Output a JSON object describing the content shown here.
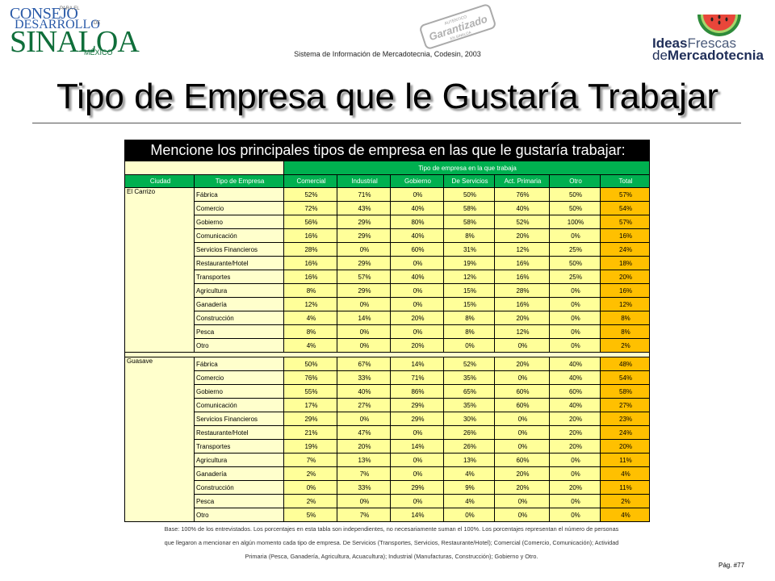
{
  "header": {
    "logo_left": {
      "line1": "CONSEJO",
      "line2": "DESARROLLO",
      "line3": "SINALOA",
      "line4": "MÉXICO",
      "small1": "PARA EL",
      "small2": "DE"
    },
    "stamp": {
      "top": "AUTENTICO",
      "main": "Garantizado",
      "bottom": "EN SINALOA"
    },
    "subtitle": "Sistema de Información de Mercadotecnia, Codesin, 2003",
    "logo_right": {
      "ideas": "Ideas",
      "frescas": "Frescas",
      "de": "de",
      "mercadotecnia": "Mercadotecnia"
    }
  },
  "title": "Tipo de Empresa que le Gustaría Trabajar",
  "table": {
    "question": "Mencione los principales tipos de empresa en las que le gustaría trabajar:",
    "group_header": "Tipo de empresa en la que trabaja",
    "col_headers": [
      "Ciudad",
      "Tipo de Empresa",
      "Comercial",
      "Industrial",
      "Gobierno",
      "De Servicios",
      "Act. Primaria",
      "Otro",
      "Total"
    ],
    "cities": [
      {
        "name": "El Carrizo",
        "rows": [
          {
            "tipo": "Fábrica",
            "vals": [
              "52%",
              "71%",
              "0%",
              "50%",
              "76%",
              "50%"
            ],
            "total": "57%"
          },
          {
            "tipo": "Comercio",
            "vals": [
              "72%",
              "43%",
              "40%",
              "58%",
              "40%",
              "50%"
            ],
            "total": "54%"
          },
          {
            "tipo": "Gobierno",
            "vals": [
              "56%",
              "29%",
              "80%",
              "58%",
              "52%",
              "100%"
            ],
            "total": "57%"
          },
          {
            "tipo": "Comunicación",
            "vals": [
              "16%",
              "29%",
              "40%",
              "8%",
              "20%",
              "0%"
            ],
            "total": "16%"
          },
          {
            "tipo": "Servicios Financieros",
            "vals": [
              "28%",
              "0%",
              "60%",
              "31%",
              "12%",
              "25%"
            ],
            "total": "24%"
          },
          {
            "tipo": "Restaurante/Hotel",
            "vals": [
              "16%",
              "29%",
              "0%",
              "19%",
              "16%",
              "50%"
            ],
            "total": "18%"
          },
          {
            "tipo": "Transportes",
            "vals": [
              "16%",
              "57%",
              "40%",
              "12%",
              "16%",
              "25%"
            ],
            "total": "20%"
          },
          {
            "tipo": "Agricultura",
            "vals": [
              "8%",
              "29%",
              "0%",
              "15%",
              "28%",
              "0%"
            ],
            "total": "16%"
          },
          {
            "tipo": "Ganadería",
            "vals": [
              "12%",
              "0%",
              "0%",
              "15%",
              "16%",
              "0%"
            ],
            "total": "12%"
          },
          {
            "tipo": "Construcción",
            "vals": [
              "4%",
              "14%",
              "20%",
              "8%",
              "20%",
              "0%"
            ],
            "total": "8%"
          },
          {
            "tipo": "Pesca",
            "vals": [
              "8%",
              "0%",
              "0%",
              "8%",
              "12%",
              "0%"
            ],
            "total": "8%"
          },
          {
            "tipo": "Otro",
            "vals": [
              "4%",
              "0%",
              "20%",
              "0%",
              "0%",
              "0%"
            ],
            "total": "2%"
          }
        ]
      },
      {
        "name": "Guasave",
        "rows": [
          {
            "tipo": "Fábrica",
            "vals": [
              "50%",
              "67%",
              "14%",
              "52%",
              "20%",
              "40%"
            ],
            "total": "48%"
          },
          {
            "tipo": "Comercio",
            "vals": [
              "76%",
              "33%",
              "71%",
              "35%",
              "0%",
              "40%"
            ],
            "total": "54%"
          },
          {
            "tipo": "Gobierno",
            "vals": [
              "55%",
              "40%",
              "86%",
              "65%",
              "60%",
              "60%"
            ],
            "total": "58%"
          },
          {
            "tipo": "Comunicación",
            "vals": [
              "17%",
              "27%",
              "29%",
              "35%",
              "60%",
              "40%"
            ],
            "total": "27%"
          },
          {
            "tipo": "Servicios Financieros",
            "vals": [
              "29%",
              "0%",
              "29%",
              "30%",
              "0%",
              "20%"
            ],
            "total": "23%"
          },
          {
            "tipo": "Restaurante/Hotel",
            "vals": [
              "21%",
              "47%",
              "0%",
              "26%",
              "0%",
              "20%"
            ],
            "total": "24%"
          },
          {
            "tipo": "Transportes",
            "vals": [
              "19%",
              "20%",
              "14%",
              "26%",
              "0%",
              "20%"
            ],
            "total": "20%"
          },
          {
            "tipo": "Agricultura",
            "vals": [
              "7%",
              "13%",
              "0%",
              "13%",
              "60%",
              "0%"
            ],
            "total": "11%"
          },
          {
            "tipo": "Ganadería",
            "vals": [
              "2%",
              "7%",
              "0%",
              "4%",
              "20%",
              "0%"
            ],
            "total": "4%"
          },
          {
            "tipo": "Construcción",
            "vals": [
              "0%",
              "33%",
              "29%",
              "9%",
              "20%",
              "20%"
            ],
            "total": "11%"
          },
          {
            "tipo": "Pesca",
            "vals": [
              "2%",
              "0%",
              "0%",
              "4%",
              "0%",
              "0%"
            ],
            "total": "2%"
          },
          {
            "tipo": "Otro",
            "vals": [
              "5%",
              "7%",
              "14%",
              "0%",
              "0%",
              "0%"
            ],
            "total": "4%"
          }
        ]
      }
    ]
  },
  "note": {
    "line1": "Base: 100% de los entrevistados. Los porcentajes en esta tabla son independientes, no necesariamente suman el 100%. Los porcentajes representan el número de personas",
    "line2": "que llegaron a mencionar en algún momento cada tipo de empresa. De Servicios (Transportes, Servicios, Restaurante/Hotel); Comercial (Comercio, Comunicación); Actividad",
    "line3": "Primaria (Pesca, Ganadería, Agricultura, Acuacultura); Industrial (Manufacturas, Construcción); Gobierno y Otro."
  },
  "page_number": "Pág. #77",
  "colors": {
    "header_green": "#00b050",
    "cell_yellow": "#ffff99",
    "label_yellow": "#ffffcc",
    "total_orange": "#ffc000"
  }
}
